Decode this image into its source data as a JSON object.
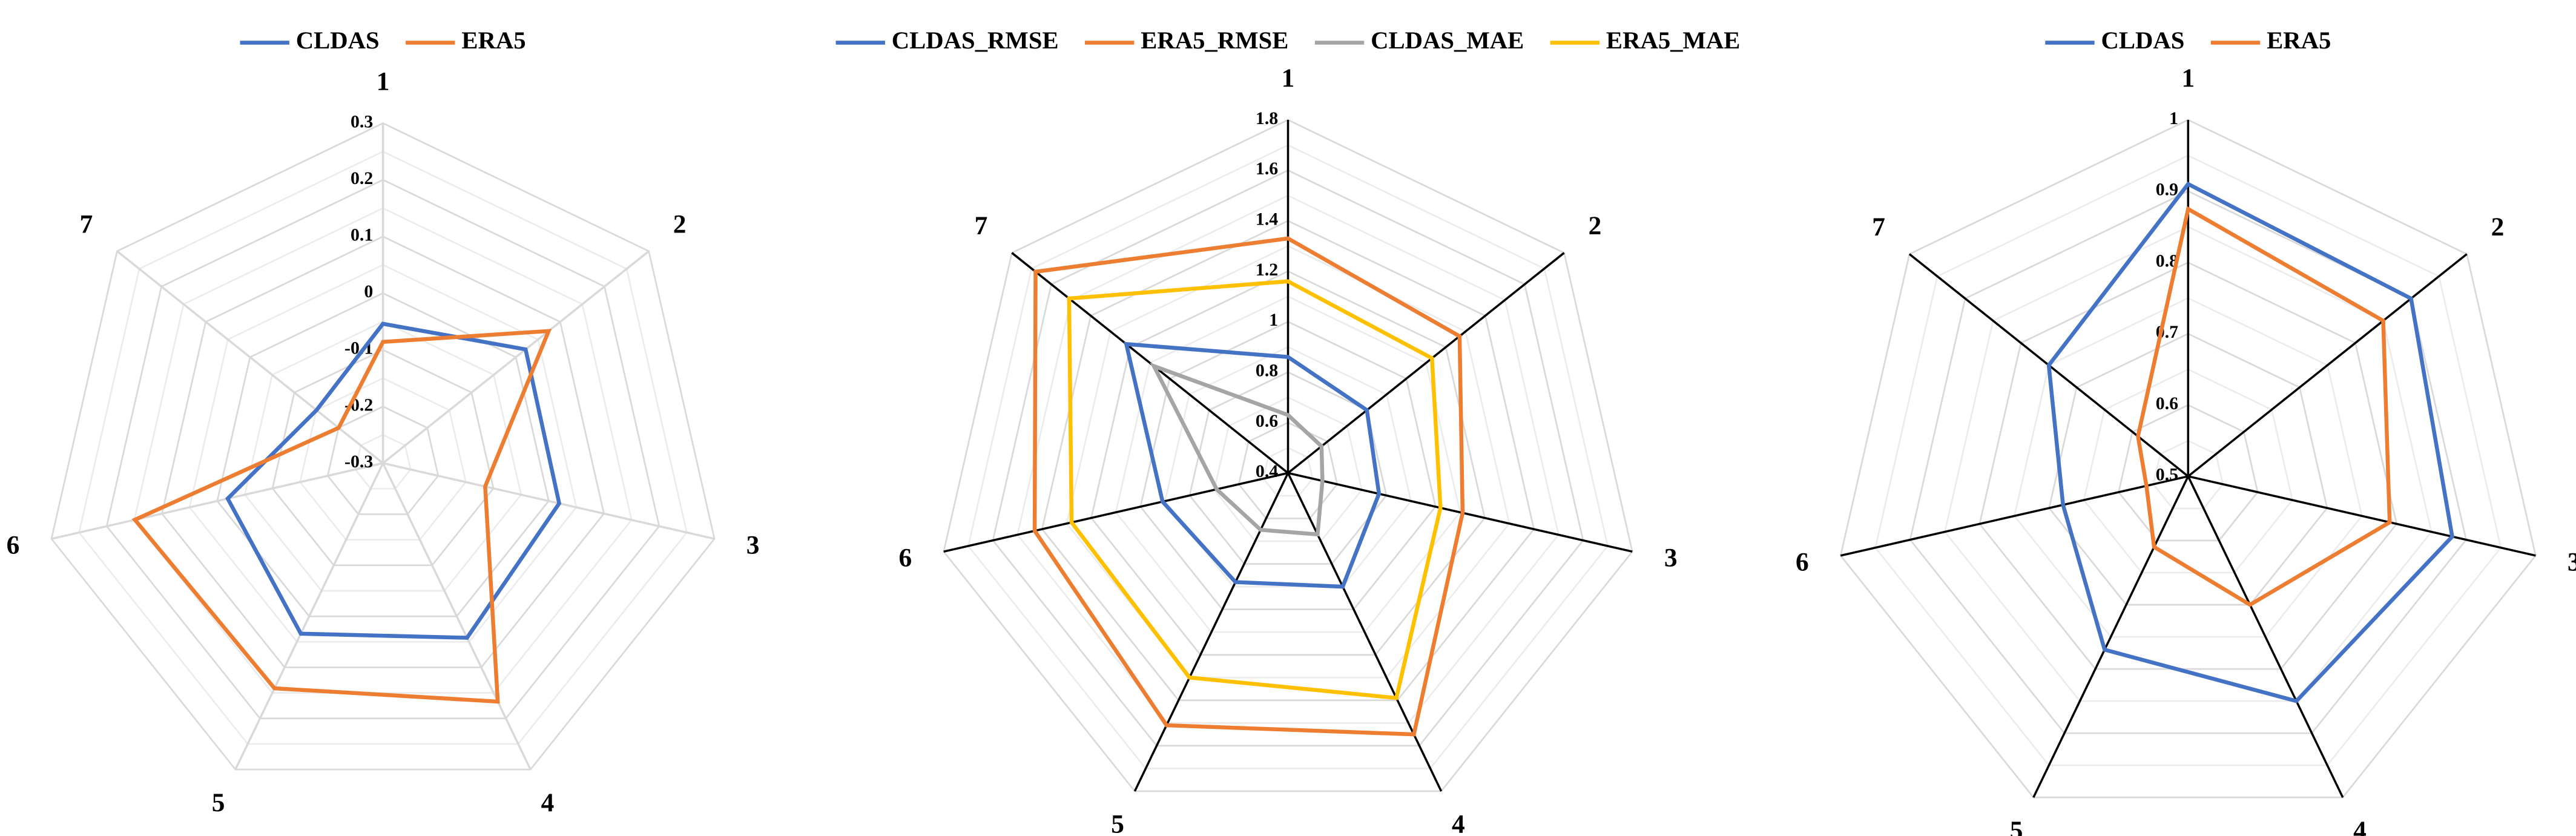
{
  "chart_data": [
    {
      "type": "radar",
      "categories": [
        "1",
        "2",
        "3",
        "4",
        "5",
        "6",
        "7"
      ],
      "ylim": [
        -0.3,
        0.3
      ],
      "yticks": [
        -0.3,
        -0.2,
        -0.1,
        0,
        0.1,
        0.2,
        0.3
      ],
      "axis_color": "#d9d9d9",
      "series": [
        {
          "name": "CLDAS",
          "color": "#4472c4",
          "values": [
            -0.054,
            0.022,
            0.019,
            0.042,
            0.034,
            -0.019,
            -0.15
          ]
        },
        {
          "name": "ERA5",
          "color": "#ed7d31",
          "values": [
            -0.086,
            0.074,
            -0.115,
            0.167,
            0.141,
            0.149,
            -0.2
          ]
        }
      ]
    },
    {
      "type": "radar",
      "categories": [
        "1",
        "2",
        "3",
        "4",
        "5",
        "6",
        "7"
      ],
      "ylim": [
        0.4,
        1.8
      ],
      "yticks": [
        0.4,
        0.6,
        0.8,
        1,
        1.2,
        1.4,
        1.6,
        1.8
      ],
      "axis_color": "#000000",
      "series": [
        {
          "name": "CLDAS_RMSE",
          "color": "#4472c4",
          "values": [
            0.86,
            0.8,
            0.77,
            0.9,
            0.88,
            0.91,
            1.22
          ]
        },
        {
          "name": "ERA5_RMSE",
          "color": "#ed7d31",
          "values": [
            1.33,
            1.27,
            1.11,
            1.55,
            1.51,
            1.43,
            1.68
          ]
        },
        {
          "name": "CLDAS_MAE",
          "color": "#a5a5a5",
          "values": [
            0.63,
            0.57,
            0.54,
            0.67,
            0.65,
            0.69,
            1.08
          ]
        },
        {
          "name": "ERA5_MAE",
          "color": "#ffc000",
          "values": [
            1.16,
            1.13,
            1.02,
            1.39,
            1.3,
            1.28,
            1.51
          ]
        }
      ]
    },
    {
      "type": "radar",
      "categories": [
        "1",
        "2",
        "3",
        "4",
        "5",
        "6",
        "7"
      ],
      "ylim": [
        0.5,
        1
      ],
      "yticks": [
        0.5,
        0.6,
        0.7,
        0.8,
        0.9,
        1
      ],
      "axis_color": "#000000",
      "series": [
        {
          "name": "CLDAS",
          "color": "#4472c4",
          "values": [
            0.91,
            0.9,
            0.88,
            0.85,
            0.77,
            0.68,
            0.75
          ]
        },
        {
          "name": "ERA5",
          "color": "#ed7d31",
          "values": [
            0.875,
            0.85,
            0.79,
            0.7,
            0.61,
            0.56,
            0.59
          ]
        }
      ]
    }
  ]
}
